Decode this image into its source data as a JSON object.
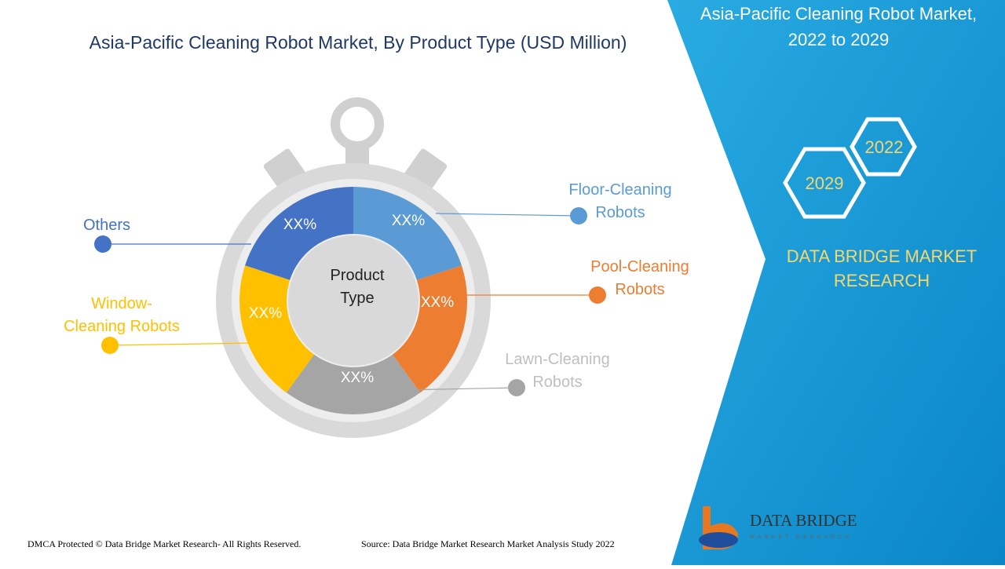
{
  "title": "Asia-Pacific Cleaning Robot Market, By Product Type (USD Million)",
  "center_label": [
    "Product",
    "Type"
  ],
  "segments": [
    {
      "label": [
        "Floor-Cleaning",
        "Robots"
      ],
      "value_label": "XX%"
    },
    {
      "label": [
        "Pool-Cleaning",
        "Robots"
      ],
      "value_label": "XX%"
    },
    {
      "label": [
        "Lawn-Cleaning",
        "Robots"
      ],
      "value_label": "XX%"
    },
    {
      "label": [
        "Window-",
        "Cleaning Robots"
      ],
      "value_label": "XX%"
    },
    {
      "label": [
        "Others"
      ],
      "value_label": "XX%"
    }
  ],
  "side_panel": {
    "title": [
      "Asia-Pacific Cleaning Robot Market,",
      "2022 to 2029"
    ],
    "years": [
      "2022",
      "2029"
    ],
    "brand": [
      "DATA BRIDGE MARKET",
      "RESEARCH"
    ]
  },
  "logo": {
    "name": "DATA BRIDGE",
    "tagline": "MARKET RESEARCH"
  },
  "footer": {
    "copyright": "DMCA Protected © Data Bridge Market Research- All Rights Reserved.",
    "source": "Source: Data Bridge Market Research Market Analysis Study 2022"
  }
}
